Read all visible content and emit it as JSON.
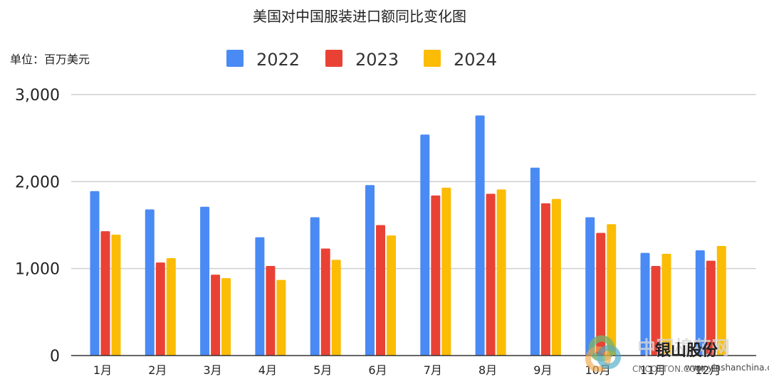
{
  "chart_data": {
    "type": "bar",
    "title": "美国对中国服装进口额同比变化图",
    "unit_label": "单位：百万美元",
    "categories": [
      "1月",
      "2月",
      "3月",
      "4月",
      "5月",
      "6月",
      "7月",
      "8月",
      "9月",
      "10月",
      "11月",
      "12月"
    ],
    "series": [
      {
        "name": "2022",
        "color": "#4a8af4",
        "values": [
          1890,
          1680,
          1710,
          1360,
          1590,
          1960,
          2540,
          2760,
          2160,
          1590,
          1180,
          1210
        ]
      },
      {
        "name": "2023",
        "color": "#e94235",
        "values": [
          1430,
          1070,
          930,
          1030,
          1230,
          1500,
          1840,
          1860,
          1750,
          1410,
          1030,
          1090
        ]
      },
      {
        "name": "2024",
        "color": "#fbbc05",
        "values": [
          1390,
          1120,
          890,
          870,
          1100,
          1380,
          1930,
          1910,
          1800,
          1510,
          1170,
          1260
        ]
      }
    ],
    "ylim": [
      0,
      3000
    ],
    "yticks": [
      {
        "value": 0,
        "label": "0"
      },
      {
        "value": 1000,
        "label": "1,000"
      },
      {
        "value": 2000,
        "label": "2,000"
      },
      {
        "value": 3000,
        "label": "3,000"
      }
    ],
    "grid": true,
    "legend_position": "top-center"
  },
  "watermarks": {
    "cotton_cn": "中国棉花网",
    "cotton_en": "CNCOTTON.COM",
    "yinshan_cn": "银山股份",
    "yinshan_url": "www.yinshanchina.com"
  }
}
